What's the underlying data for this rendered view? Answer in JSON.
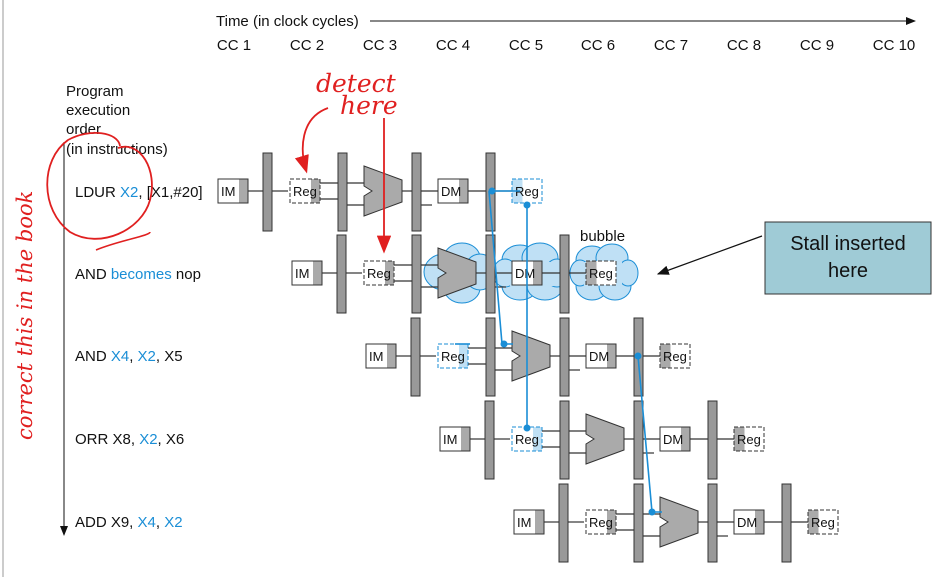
{
  "header": {
    "time_label": "Time (in clock cycles)",
    "cycles": [
      "CC 1",
      "CC 2",
      "CC 3",
      "CC 4",
      "CC 5",
      "CC 6",
      "CC 7",
      "CC 8",
      "CC 9",
      "CC 10"
    ]
  },
  "order_label": [
    "Program",
    "execution",
    "order",
    "(in instructions)"
  ],
  "instructions": [
    {
      "parts": [
        {
          "t": "LDUR ",
          "c": "black"
        },
        {
          "t": "X2",
          "c": "blue"
        },
        {
          "t": ", [X1,#20]",
          "c": "black"
        }
      ]
    },
    {
      "parts": [
        {
          "t": "AND ",
          "c": "black"
        },
        {
          "t": "becomes",
          "c": "blue"
        },
        {
          "t": " nop",
          "c": "black"
        }
      ]
    },
    {
      "parts": [
        {
          "t": "AND ",
          "c": "black"
        },
        {
          "t": "X4",
          "c": "blue"
        },
        {
          "t": ", ",
          "c": "black"
        },
        {
          "t": "X2",
          "c": "blue"
        },
        {
          "t": ", X5",
          "c": "black"
        }
      ]
    },
    {
      "parts": [
        {
          "t": "ORR X8, ",
          "c": "black"
        },
        {
          "t": "X2",
          "c": "blue"
        },
        {
          "t": ", X6",
          "c": "black"
        }
      ]
    },
    {
      "parts": [
        {
          "t": "ADD X9, ",
          "c": "black"
        },
        {
          "t": "X4",
          "c": "blue"
        },
        {
          "t": ", ",
          "c": "black"
        },
        {
          "t": "X2",
          "c": "blue"
        }
      ]
    }
  ],
  "units": {
    "im": "IM",
    "reg": "Reg",
    "dm": "DM"
  },
  "bubble_label": "bubble",
  "callout": {
    "line1": "Stall inserted",
    "line2": "here"
  },
  "annotations": {
    "detect_line1": "detect",
    "detect_line2": "here",
    "margin_note": "correct this in the book"
  },
  "colors": {
    "forward_blue": "#1a8ed6",
    "handwriting_red": "#e02020",
    "callout_fill": "#9fcbd6",
    "bubble_blue": "#bfe0f5",
    "unit_gray": "#aaaaaa"
  }
}
